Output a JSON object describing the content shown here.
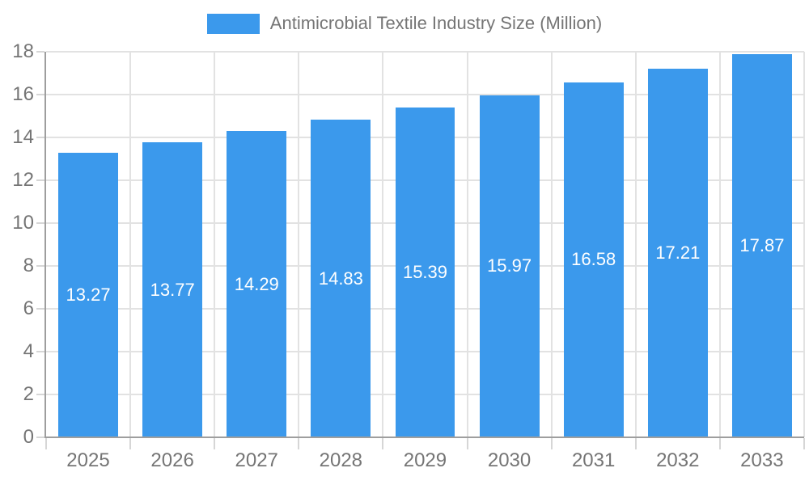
{
  "chart_data": {
    "type": "bar",
    "legend": "Antimicrobial Textile Industry Size (Million)",
    "legend_position": "top",
    "categories": [
      "2025",
      "2026",
      "2027",
      "2028",
      "2029",
      "2030",
      "2031",
      "2032",
      "2033"
    ],
    "values": [
      13.27,
      13.77,
      14.29,
      14.83,
      15.39,
      15.97,
      16.58,
      17.21,
      17.87
    ],
    "value_labels": [
      "13.27",
      "13.77",
      "14.29",
      "14.83",
      "15.39",
      "15.97",
      "16.58",
      "17.21",
      "17.87"
    ],
    "title": "",
    "xlabel": "",
    "ylabel": "",
    "ylim": [
      0,
      18
    ],
    "ytick_step": 2,
    "ytick_labels": [
      "0",
      "2",
      "4",
      "6",
      "8",
      "10",
      "12",
      "14",
      "16",
      "18"
    ],
    "grid": true,
    "colors": {
      "bar": "#3B99EC",
      "grid": "#E2E2E2",
      "tick": "#D6D6D6",
      "axis": "#9E9E9E",
      "text": "#757575",
      "value_label": "#FFFFFF",
      "background": "#FFFFFF"
    }
  }
}
